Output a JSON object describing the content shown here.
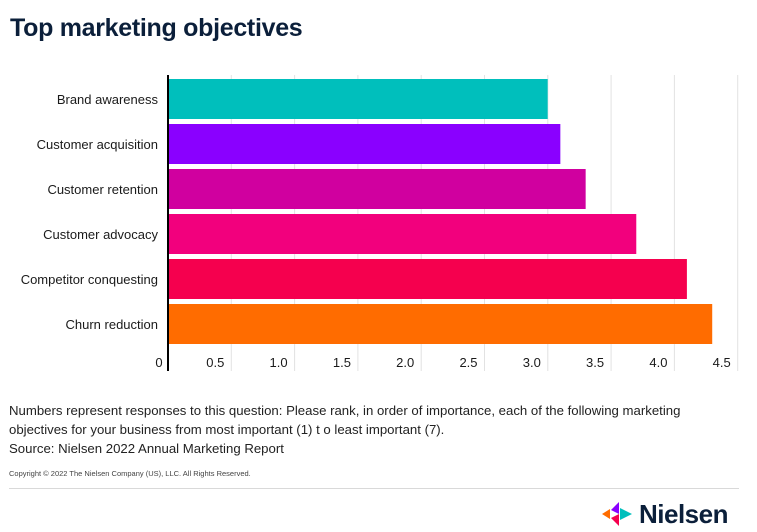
{
  "page": {
    "title": "Top marketing objectives",
    "note_line1": "Numbers represent responses to this question: Please rank, in order of importance, each of the following marketing",
    "note_line2": "objectives for your business from most important (1) t o least important (7).",
    "source": "Source: Nielsen 2022 Annual Marketing Report",
    "copyright": "Copyright © 2022 The Nielsen Company (US), LLC. All Rights Reserved.",
    "logo_text": "Nielsen"
  },
  "chart_data": {
    "type": "bar",
    "orientation": "horizontal",
    "title": "Top marketing objectives",
    "categories": [
      "Brand awareness",
      "Customer acquisition",
      "Customer retention",
      "Customer advocacy",
      "Competitor conquesting",
      "Churn reduction"
    ],
    "values": [
      3.0,
      3.1,
      3.3,
      3.7,
      4.1,
      4.3
    ],
    "colors": [
      "#00bfbc",
      "#8a00ff",
      "#d0009f",
      "#f2007d",
      "#f5004e",
      "#ff6c00"
    ],
    "xlim": [
      0,
      4.5
    ],
    "x_ticks": [
      "0",
      "0.5",
      "1.0",
      "1.5",
      "2.0",
      "2.5",
      "3.0",
      "3.5",
      "4.0",
      "4.5"
    ],
    "x_tick_values": [
      0,
      0.5,
      1.0,
      1.5,
      2.0,
      2.5,
      3.0,
      3.5,
      4.0,
      4.5
    ],
    "grid": true,
    "grid_color": "#e2e2e2",
    "axis_color": "#000000"
  },
  "logo_colors": [
    "#ff6c00",
    "#f5004e",
    "#8a00ff",
    "#00bfbc"
  ]
}
